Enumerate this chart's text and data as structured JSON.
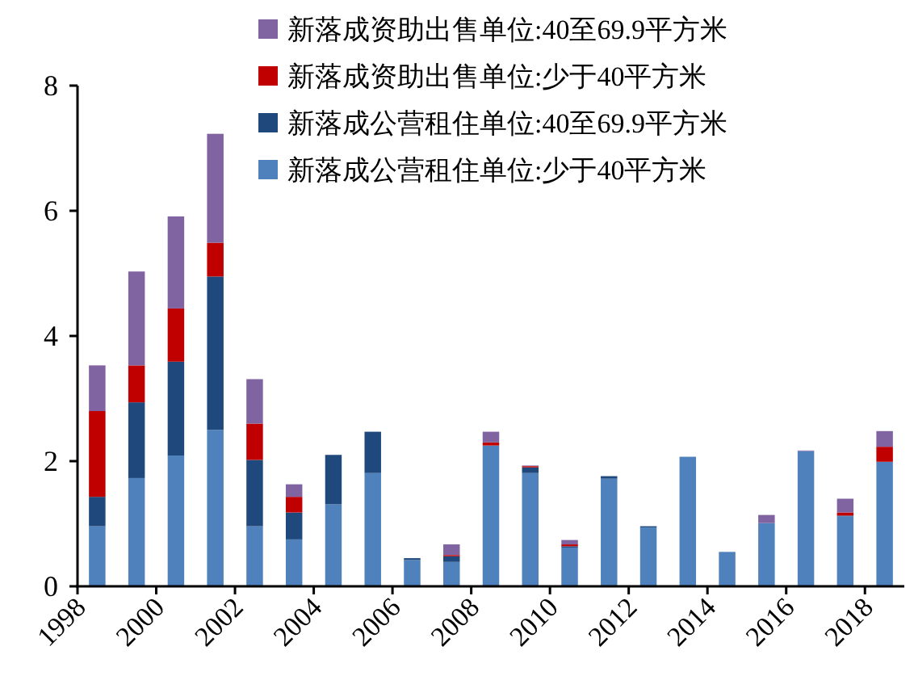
{
  "chart_data": {
    "type": "bar",
    "stacked": true,
    "categories": [
      "1998",
      null,
      "2000",
      null,
      "2002",
      null,
      "2004",
      null,
      "2006",
      null,
      "2008",
      null,
      "2010",
      null,
      "2012",
      null,
      "2014",
      null,
      "2016",
      null,
      "2018"
    ],
    "series": [
      {
        "name": "新落成公营租住单位:少于40平方米",
        "color": "#4f81bd",
        "values": [
          0.96,
          1.73,
          2.09,
          2.5,
          0.96,
          0.75,
          1.31,
          1.81,
          0.42,
          0.39,
          2.25,
          1.81,
          0.62,
          1.72,
          0.94,
          2.07,
          0.55,
          1.01,
          2.16,
          1.12,
          1.99
        ]
      },
      {
        "name": "新落成公营租住单位:40至69.9平方米",
        "color": "#1f497d",
        "values": [
          0.47,
          1.21,
          1.5,
          2.45,
          1.06,
          0.43,
          0.79,
          0.66,
          0.03,
          0.09,
          0,
          0.09,
          0.02,
          0.04,
          0.02,
          0,
          0,
          0,
          0,
          0.01,
          0
        ]
      },
      {
        "name": "新落成资助出售单位:少于40平方米",
        "color": "#c00000",
        "values": [
          1.37,
          0.59,
          0.85,
          0.54,
          0.58,
          0.25,
          0,
          0,
          0,
          0.02,
          0.05,
          0.02,
          0.03,
          0,
          0,
          0,
          0,
          0,
          0,
          0.05,
          0.24
        ]
      },
      {
        "name": "新落成资助出售单位:40至69.9平方米",
        "color": "#8064a2",
        "values": [
          0.73,
          1.5,
          1.47,
          1.74,
          0.71,
          0.2,
          0,
          0,
          0,
          0.17,
          0.17,
          0.01,
          0.07,
          0,
          0,
          0,
          0,
          0.13,
          0.01,
          0.22,
          0.25
        ]
      }
    ],
    "ylim": [
      0,
      8
    ],
    "yticks": [
      0,
      2,
      4,
      6,
      8
    ],
    "grid": false,
    "legend": "top right"
  }
}
